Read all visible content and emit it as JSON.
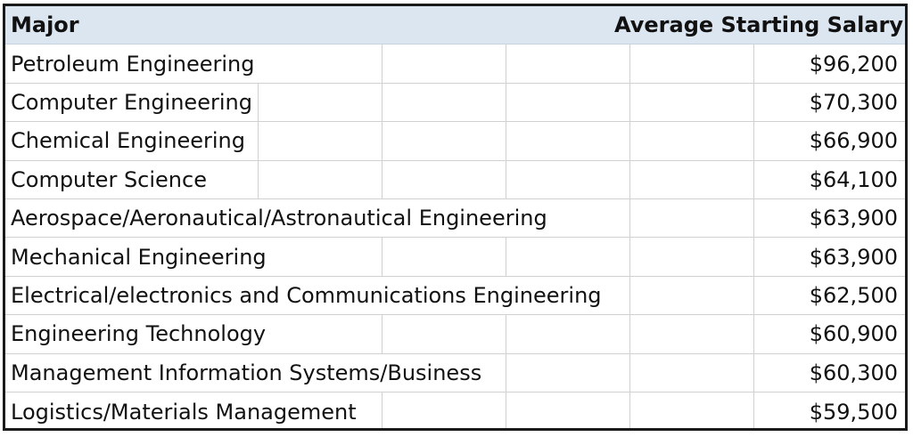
{
  "table": {
    "headers": {
      "major": "Major",
      "salary": "Average Starting Salary"
    },
    "rows": [
      {
        "major": "Petroleum Engineering",
        "salary": "$96,200"
      },
      {
        "major": "Computer Engineering",
        "salary": "$70,300"
      },
      {
        "major": "Chemical Engineering",
        "salary": "$66,900"
      },
      {
        "major": "Computer Science",
        "salary": "$64,100"
      },
      {
        "major": "Aerospace/Aeronautical/Astronautical Engineering",
        "salary": "$63,900"
      },
      {
        "major": "Mechanical Engineering",
        "salary": "$63,900"
      },
      {
        "major": "Electrical/electronics and Communications Engineering",
        "salary": "$62,500"
      },
      {
        "major": "Engineering Technology",
        "salary": "$60,900"
      },
      {
        "major": "Management Information Systems/Business",
        "salary": "$60,300"
      },
      {
        "major": "Logistics/Materials Management",
        "salary": "$59,500"
      }
    ]
  }
}
